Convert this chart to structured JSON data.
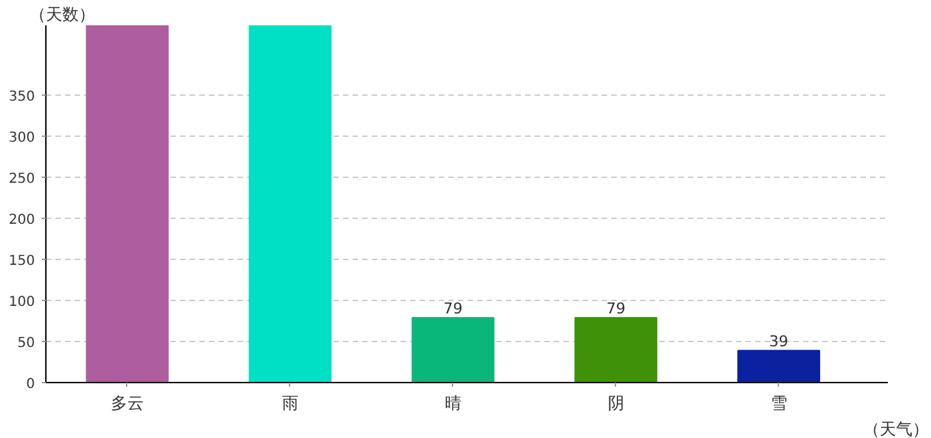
{
  "chart_data": {
    "type": "bar",
    "xlabel": "（天气）",
    "ylabel": "（天数）",
    "categories": [
      "多云",
      "雨",
      "晴",
      "阴",
      "雪"
    ],
    "values": [
      435,
      435,
      79,
      79,
      39
    ],
    "colors": [
      "#ae5e9f",
      "#00e0c4",
      "#0ab77b",
      "#3e9109",
      "#0a22a0"
    ],
    "value_labels": [
      null,
      null,
      "79",
      "79",
      "39"
    ],
    "ylim": [
      0,
      435
    ],
    "yticks": [
      0,
      50,
      100,
      150,
      200,
      250,
      300,
      350
    ],
    "grid": "y"
  }
}
